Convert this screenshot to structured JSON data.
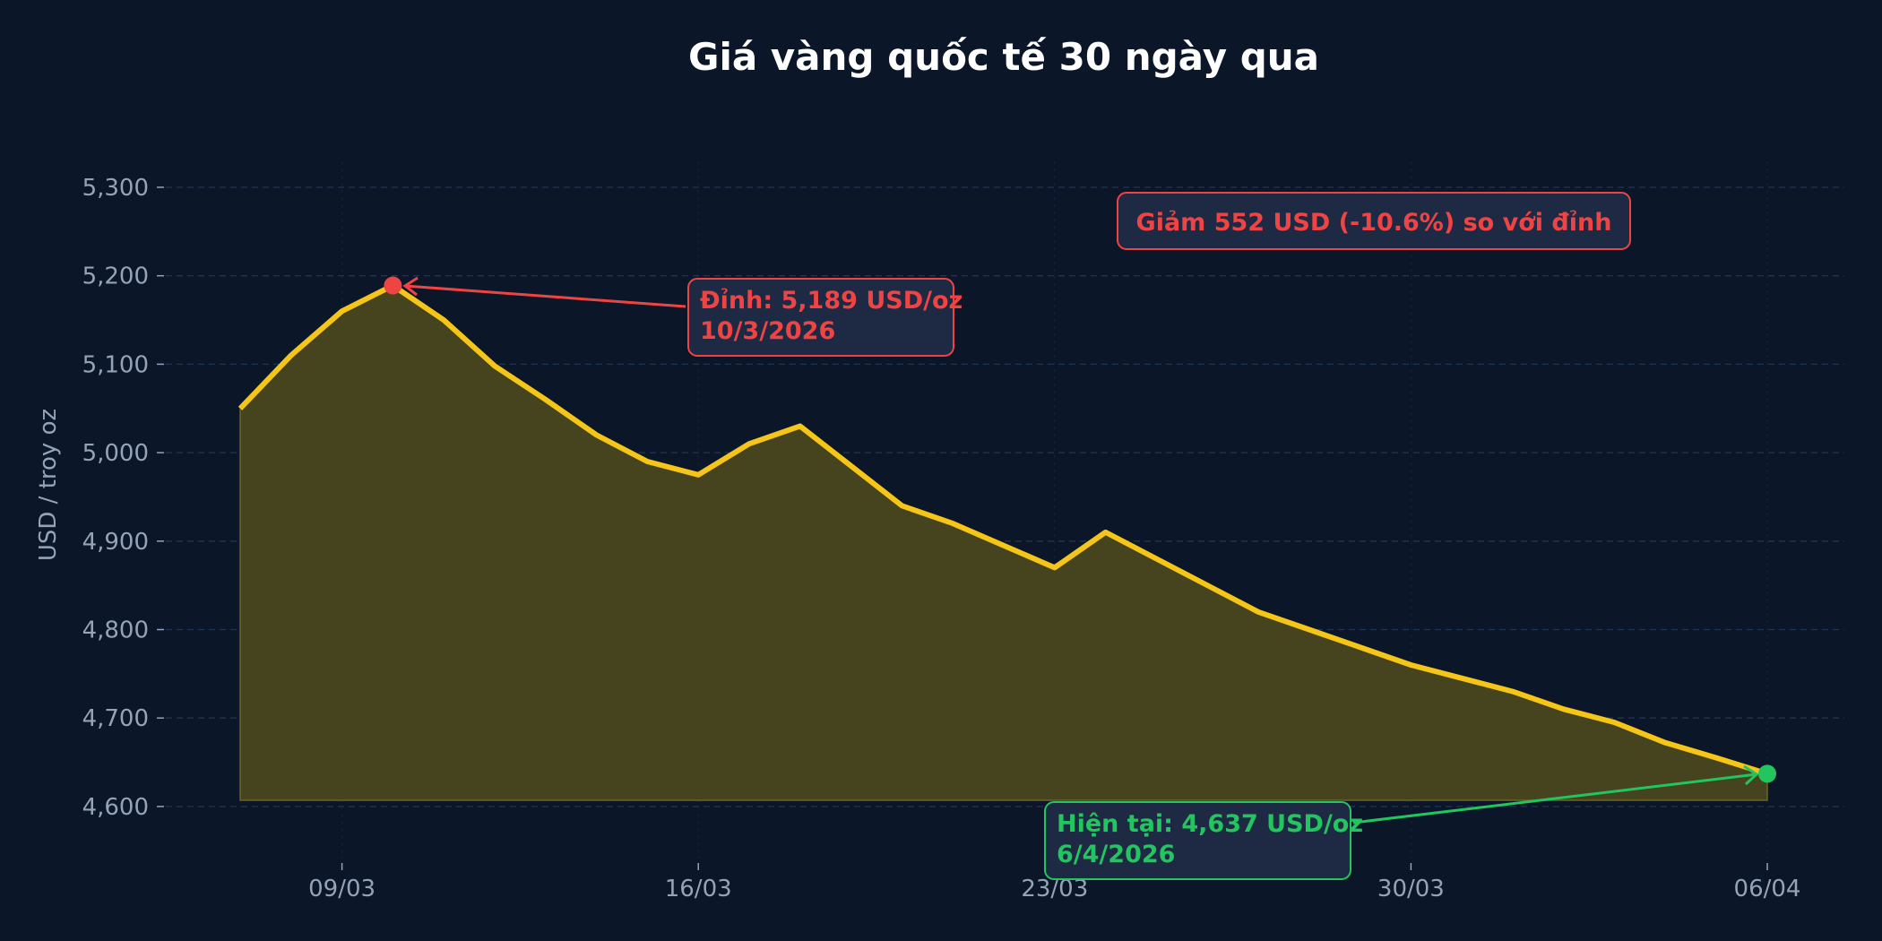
{
  "chart_data": {
    "type": "area",
    "title": "Giá vàng quốc tế 30 ngày qua",
    "xlabel": "",
    "ylabel": "USD / troy oz",
    "ylim": [
      4585,
      5340
    ],
    "grid": true,
    "legend": null,
    "x": [
      "07/03",
      "08/03",
      "09/03",
      "10/03",
      "11/03",
      "12/03",
      "13/03",
      "14/03",
      "15/03",
      "16/03",
      "17/03",
      "18/03",
      "19/03",
      "20/03",
      "21/03",
      "22/03",
      "23/03",
      "24/03",
      "25/03",
      "26/03",
      "27/03",
      "28/03",
      "29/03",
      "30/03",
      "31/03",
      "01/04",
      "02/04",
      "03/04",
      "04/04",
      "05/04",
      "06/04"
    ],
    "values": [
      5050,
      5110,
      5160,
      5189,
      5150,
      5098,
      5060,
      5020,
      4990,
      4975,
      5010,
      5030,
      4985,
      4940,
      4920,
      4895,
      4870,
      4910,
      4880,
      4850,
      4820,
      4800,
      4780,
      4760,
      4745,
      4730,
      4710,
      4695,
      4672,
      4655,
      4637
    ],
    "x_ticks": [
      {
        "label": "09/03",
        "index": 2
      },
      {
        "label": "16/03",
        "index": 9
      },
      {
        "label": "23/03",
        "index": 16
      },
      {
        "label": "30/03",
        "index": 23
      },
      {
        "label": "06/04",
        "index": 30
      }
    ],
    "y_ticks": [
      {
        "label": "5,300",
        "value": 5300
      },
      {
        "label": "5,200",
        "value": 5200
      },
      {
        "label": "5,100",
        "value": 5100
      },
      {
        "label": "5,000",
        "value": 5000
      },
      {
        "label": "4,900",
        "value": 4900
      },
      {
        "label": "4,800",
        "value": 4800
      },
      {
        "label": "4,700",
        "value": 4700
      },
      {
        "label": "4,600",
        "value": 4600
      }
    ],
    "fill_baseline": 4607,
    "annotations": {
      "peak": {
        "line1": "Đỉnh: 5,189 USD/oz",
        "line2": "10/3/2026",
        "index": 3,
        "value": 5189
      },
      "current": {
        "line1": "Hiện tại: 4,637 USD/oz",
        "line2": "6/4/2026",
        "index": 30,
        "value": 4637
      },
      "drop": {
        "text": "Giảm 552 USD  (-10.6%)  so với đỉnh"
      }
    },
    "colors": {
      "background": "#0b1628",
      "line": "#f5c518",
      "fill": "#46431f",
      "peak": "#ef4444",
      "current": "#22c55e",
      "box_bg": "#1e2a44",
      "text_muted": "#94a3b8"
    }
  }
}
